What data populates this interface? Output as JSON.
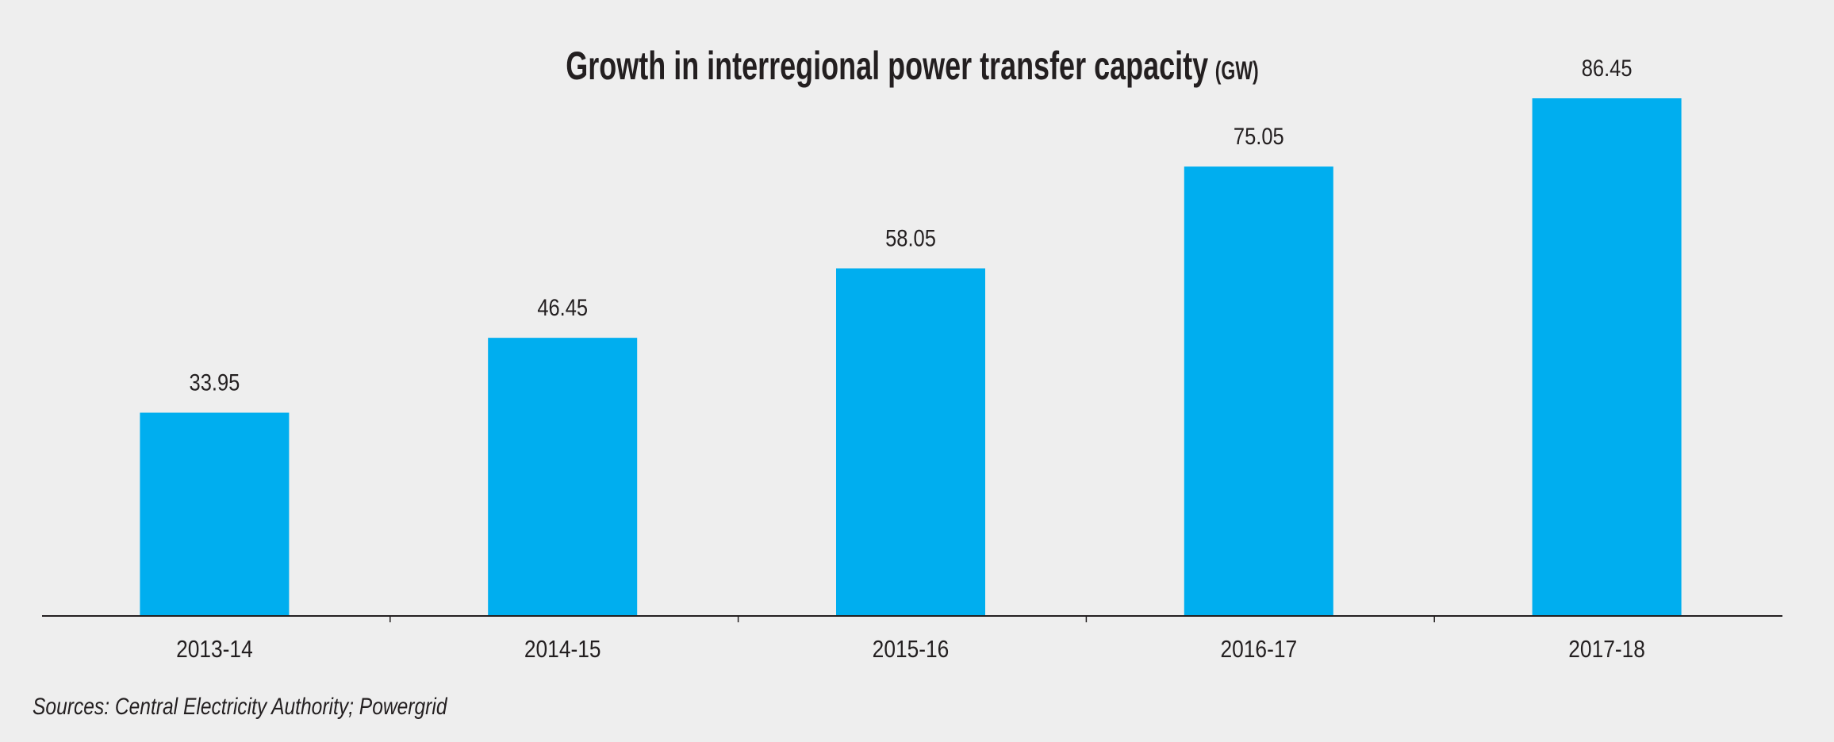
{
  "chart_data": {
    "type": "bar",
    "title": "Growth in interregional power transfer capacity",
    "title_unit": "(GW)",
    "categories": [
      "2013-14",
      "2014-15",
      "2015-16",
      "2016-17",
      "2017-18"
    ],
    "values": [
      33.95,
      46.45,
      58.05,
      75.05,
      86.45
    ],
    "value_labels": [
      "33.95",
      "46.45",
      "58.05",
      "75.05",
      "86.45"
    ],
    "xlabel": "",
    "ylabel": "",
    "ylim": [
      0,
      86.45
    ],
    "grid": false,
    "bar_color": "#00aeef",
    "source": "Sources: Central Electricity Authority; Powergrid"
  }
}
